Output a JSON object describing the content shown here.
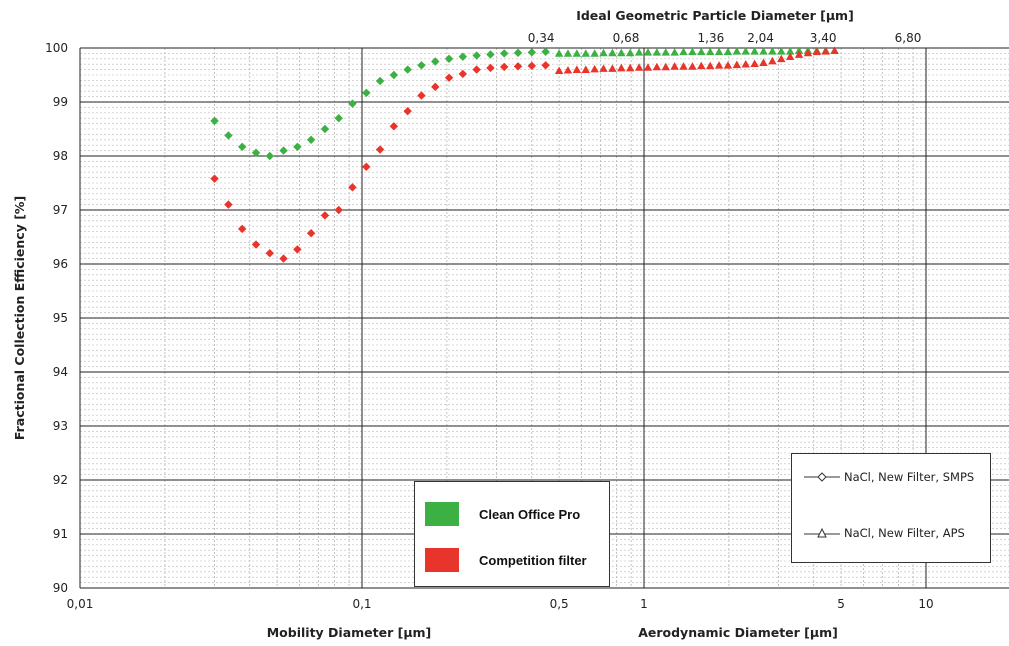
{
  "chart_data": {
    "type": "scatter",
    "y_title": "Fractional Collection Efficiency [%]",
    "x_title_mobility": "Mobility Diameter [µm]",
    "x_title_aerodynamic": "Aerodynamic Diameter [µm]",
    "top_title": "Ideal Geometric Particle Diameter [µm]",
    "x_scale": "log",
    "xlim": [
      0.01,
      20
    ],
    "ylim": [
      90,
      100
    ],
    "grid": true,
    "y_ticks": [
      "90",
      "91",
      "92",
      "93",
      "94",
      "95",
      "96",
      "97",
      "98",
      "99",
      "100"
    ],
    "x_ticks_bottom": [
      {
        "v": 0.01,
        "label": "0,01"
      },
      {
        "v": 0.1,
        "label": "0,1"
      },
      {
        "v": 0.5,
        "label": "0,5"
      },
      {
        "v": 1,
        "label": "1"
      },
      {
        "v": 5,
        "label": "5"
      },
      {
        "v": 10,
        "label": "10"
      }
    ],
    "x_ticks_top": [
      {
        "v": 0.5,
        "label": "0,34"
      },
      {
        "v": 1,
        "label": "0,68"
      },
      {
        "v": 2,
        "label": "1,36"
      },
      {
        "v": 3,
        "label": "2,04"
      },
      {
        "v": 5,
        "label": "3,40"
      },
      {
        "v": 10,
        "label": "6,80"
      }
    ],
    "series": [
      {
        "name": "Clean Office Pro",
        "color": "#3cb043",
        "smps": {
          "x": [
            0.03,
            0.0336,
            0.0376,
            0.0421,
            0.0471,
            0.0527,
            0.059,
            0.066,
            0.0739,
            0.0827,
            0.0925,
            0.1036,
            0.1159,
            0.1297,
            0.1452,
            0.1625,
            0.1819,
            0.2036,
            0.2278,
            0.255,
            0.2854,
            0.3194,
            0.3575,
            0.4001,
            0.4478
          ],
          "y": [
            98.65,
            98.38,
            98.17,
            98.06,
            98.0,
            98.1,
            98.17,
            98.3,
            98.5,
            98.7,
            98.97,
            99.17,
            99.39,
            99.5,
            99.6,
            99.68,
            99.75,
            99.8,
            99.84,
            99.86,
            99.88,
            99.9,
            99.91,
            99.92,
            99.93
          ]
        },
        "aps": {
          "x": [
            0.5,
            0.5376,
            0.578,
            0.6215,
            0.6683,
            0.7186,
            0.7727,
            0.8309,
            0.8934,
            0.9607,
            1.033,
            1.1107,
            1.1943,
            1.2842,
            1.3808,
            1.4848,
            1.5965,
            1.7166,
            1.8458,
            1.9848,
            2.1341,
            2.2947,
            2.4674,
            2.6532,
            2.8528,
            3.0675,
            3.2984,
            3.5466,
            3.8135,
            4.1005,
            4.4091,
            4.7409
          ],
          "y": [
            99.9,
            99.9,
            99.9,
            99.9,
            99.9,
            99.91,
            99.91,
            99.91,
            99.91,
            99.92,
            99.92,
            99.92,
            99.92,
            99.92,
            99.93,
            99.93,
            99.93,
            99.93,
            99.93,
            99.93,
            99.94,
            99.94,
            99.94,
            99.94,
            99.94,
            99.94,
            99.94,
            99.95,
            99.95,
            99.95,
            99.95,
            99.95
          ]
        }
      },
      {
        "name": "Competition filter",
        "color": "#e8342a",
        "smps": {
          "x": [
            0.03,
            0.0336,
            0.0376,
            0.0421,
            0.0471,
            0.0527,
            0.059,
            0.066,
            0.0739,
            0.0827,
            0.0925,
            0.1036,
            0.1159,
            0.1297,
            0.1452,
            0.1625,
            0.1819,
            0.2036,
            0.2278,
            0.255,
            0.2854,
            0.3194,
            0.3575,
            0.4001,
            0.4478
          ],
          "y": [
            97.58,
            97.1,
            96.65,
            96.36,
            96.2,
            96.1,
            96.27,
            96.57,
            96.9,
            97.0,
            97.42,
            97.8,
            98.12,
            98.55,
            98.83,
            99.12,
            99.28,
            99.45,
            99.52,
            99.6,
            99.63,
            99.65,
            99.66,
            99.67,
            99.68
          ]
        },
        "aps": {
          "x": [
            0.5,
            0.5376,
            0.578,
            0.6215,
            0.6683,
            0.7186,
            0.7727,
            0.8309,
            0.8934,
            0.9607,
            1.033,
            1.1107,
            1.1943,
            1.2842,
            1.3808,
            1.4848,
            1.5965,
            1.7166,
            1.8458,
            1.9848,
            2.1341,
            2.2947,
            2.4674,
            2.6532,
            2.8528,
            3.0675,
            3.2984,
            3.5466,
            3.8135,
            4.1005,
            4.4091,
            4.7409
          ],
          "y": [
            99.58,
            99.59,
            99.6,
            99.6,
            99.61,
            99.62,
            99.62,
            99.63,
            99.63,
            99.64,
            99.64,
            99.65,
            99.65,
            99.66,
            99.66,
            99.66,
            99.67,
            99.67,
            99.68,
            99.68,
            99.69,
            99.7,
            99.71,
            99.73,
            99.76,
            99.8,
            99.84,
            99.88,
            99.91,
            99.93,
            99.94,
            99.95
          ]
        }
      }
    ]
  },
  "legend_manufacturer": [
    {
      "label": "Clean Office Pro",
      "color": "#3cb043"
    },
    {
      "label": "Competition filter",
      "color": "#e8342a"
    }
  ],
  "legend_standard": [
    {
      "label": "NaCl, New Filter, SMPS",
      "marker": "diamond"
    },
    {
      "label": "NaCl, New Filter, APS",
      "marker": "triangle"
    }
  ]
}
